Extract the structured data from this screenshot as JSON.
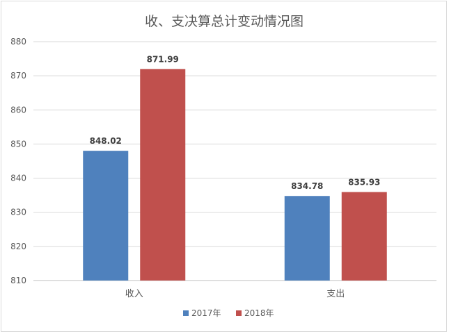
{
  "chart_data": {
    "type": "bar",
    "title": "收、支决算总计变动情况图",
    "categories": [
      "收入",
      "支出"
    ],
    "series": [
      {
        "name": "2017年",
        "color": "#4f81bd",
        "values": [
          848.02,
          834.78
        ]
      },
      {
        "name": "2018年",
        "color": "#c0504d",
        "values": [
          871.99,
          835.93
        ]
      }
    ],
    "data_labels": [
      [
        "848.02",
        "834.78"
      ],
      [
        "871.99",
        "835.93"
      ]
    ],
    "ylim": [
      810,
      880
    ],
    "yticks": [
      810,
      820,
      830,
      840,
      850,
      860,
      870,
      880
    ],
    "grid": true,
    "legend_position": "bottom",
    "xlabel": "",
    "ylabel": ""
  }
}
